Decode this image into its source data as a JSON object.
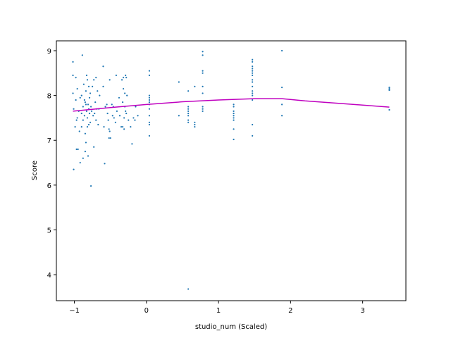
{
  "chart_data": {
    "type": "scatter",
    "title": "",
    "xlabel": "studio_num (Scaled)",
    "ylabel": "Score",
    "xlim": [
      -1.25,
      3.6
    ],
    "ylim": [
      3.42,
      9.22
    ],
    "xticks": [
      -1,
      0,
      1,
      2,
      3
    ],
    "yticks": [
      4,
      5,
      6,
      7,
      8,
      9
    ],
    "grid": false,
    "legend": "none",
    "colors": {
      "points": "#1f77b4",
      "trend": "#bf00bf"
    },
    "series": [
      {
        "type": "scatter",
        "points": [
          [
            -1.02,
            8.75
          ],
          [
            -1.02,
            8.45
          ],
          [
            -1.02,
            8.05
          ],
          [
            -1.01,
            7.7
          ],
          [
            -1.01,
            6.35
          ],
          [
            -0.99,
            7.3
          ],
          [
            -0.98,
            8.4
          ],
          [
            -0.98,
            7.9
          ],
          [
            -0.97,
            7.45
          ],
          [
            -0.97,
            6.8
          ],
          [
            -0.96,
            8.15
          ],
          [
            -0.96,
            7.5
          ],
          [
            -0.95,
            6.8
          ],
          [
            -0.94,
            7.65
          ],
          [
            -0.93,
            7.2
          ],
          [
            -0.92,
            7.95
          ],
          [
            -0.92,
            6.5
          ],
          [
            -0.9,
            8.0
          ],
          [
            -0.9,
            7.6
          ],
          [
            -0.9,
            7.3
          ],
          [
            -0.89,
            8.9
          ],
          [
            -0.88,
            7.75
          ],
          [
            -0.88,
            7.45
          ],
          [
            -0.88,
            6.6
          ],
          [
            -0.87,
            8.25
          ],
          [
            -0.86,
            7.9
          ],
          [
            -0.86,
            7.55
          ],
          [
            -0.85,
            7.85
          ],
          [
            -0.85,
            7.15
          ],
          [
            -0.85,
            6.75
          ],
          [
            -0.84,
            8.1
          ],
          [
            -0.84,
            7.8
          ],
          [
            -0.84,
            6.95
          ],
          [
            -0.83,
            8.45
          ],
          [
            -0.83,
            7.65
          ],
          [
            -0.82,
            8.35
          ],
          [
            -0.82,
            7.5
          ],
          [
            -0.82,
            7.3
          ],
          [
            -0.81,
            7.8
          ],
          [
            -0.81,
            6.65
          ],
          [
            -0.8,
            8.2
          ],
          [
            -0.8,
            7.7
          ],
          [
            -0.8,
            7.35
          ],
          [
            -0.79,
            7.95
          ],
          [
            -0.79,
            7.6
          ],
          [
            -0.78,
            8.05
          ],
          [
            -0.78,
            7.4
          ],
          [
            -0.77,
            7.75
          ],
          [
            -0.77,
            5.98
          ],
          [
            -0.76,
            7.65
          ],
          [
            -0.75,
            8.2
          ],
          [
            -0.74,
            7.55
          ],
          [
            -0.73,
            8.35
          ],
          [
            -0.73,
            6.85
          ],
          [
            -0.72,
            7.6
          ],
          [
            -0.71,
            7.85
          ],
          [
            -0.7,
            8.4
          ],
          [
            -0.7,
            7.45
          ],
          [
            -0.69,
            7.7
          ],
          [
            -0.68,
            8.1
          ],
          [
            -0.67,
            7.35
          ],
          [
            -0.66,
            7.7
          ],
          [
            -0.65,
            8.0
          ],
          [
            -0.6,
            8.65
          ],
          [
            -0.6,
            8.2
          ],
          [
            -0.59,
            7.3
          ],
          [
            -0.58,
            6.48
          ],
          [
            -0.57,
            7.75
          ],
          [
            -0.55,
            7.8
          ],
          [
            -0.54,
            7.6
          ],
          [
            -0.53,
            7.45
          ],
          [
            -0.52,
            7.25
          ],
          [
            -0.52,
            7.05
          ],
          [
            -0.51,
            8.35
          ],
          [
            -0.51,
            7.2
          ],
          [
            -0.5,
            7.05
          ],
          [
            -0.48,
            7.8
          ],
          [
            -0.47,
            7.55
          ],
          [
            -0.46,
            7.75
          ],
          [
            -0.45,
            7.5
          ],
          [
            -0.43,
            7.4
          ],
          [
            -0.42,
            8.45
          ],
          [
            -0.41,
            7.65
          ],
          [
            -0.38,
            7.95
          ],
          [
            -0.37,
            7.55
          ],
          [
            -0.35,
            7.3
          ],
          [
            -0.34,
            8.35
          ],
          [
            -0.33,
            7.85
          ],
          [
            -0.33,
            7.3
          ],
          [
            -0.32,
            8.4
          ],
          [
            -0.32,
            8.15
          ],
          [
            -0.31,
            7.5
          ],
          [
            -0.31,
            7.25
          ],
          [
            -0.3,
            8.05
          ],
          [
            -0.3,
            7.75
          ],
          [
            -0.29,
            8.45
          ],
          [
            -0.29,
            7.65
          ],
          [
            -0.28,
            8.4
          ],
          [
            -0.28,
            7.6
          ],
          [
            -0.27,
            8.0
          ],
          [
            -0.25,
            7.45
          ],
          [
            -0.22,
            7.3
          ],
          [
            -0.2,
            6.92
          ],
          [
            -0.18,
            7.5
          ],
          [
            -0.16,
            7.45
          ],
          [
            -0.15,
            7.75
          ],
          [
            -0.12,
            7.55
          ],
          [
            0.04,
            8.55
          ],
          [
            0.04,
            8.45
          ],
          [
            0.04,
            8.0
          ],
          [
            0.04,
            7.95
          ],
          [
            0.04,
            7.9
          ],
          [
            0.04,
            7.85
          ],
          [
            0.04,
            7.8
          ],
          [
            0.04,
            7.7
          ],
          [
            0.04,
            7.55
          ],
          [
            0.04,
            7.4
          ],
          [
            0.04,
            7.35
          ],
          [
            0.04,
            7.1
          ],
          [
            0.45,
            8.3
          ],
          [
            0.45,
            7.55
          ],
          [
            0.58,
            8.1
          ],
          [
            0.58,
            7.75
          ],
          [
            0.58,
            7.7
          ],
          [
            0.58,
            7.65
          ],
          [
            0.58,
            7.6
          ],
          [
            0.58,
            7.55
          ],
          [
            0.58,
            7.45
          ],
          [
            0.58,
            7.4
          ],
          [
            0.58,
            3.68
          ],
          [
            0.67,
            8.2
          ],
          [
            0.67,
            7.4
          ],
          [
            0.67,
            7.35
          ],
          [
            0.67,
            7.3
          ],
          [
            0.78,
            8.98
          ],
          [
            0.78,
            8.9
          ],
          [
            0.78,
            8.55
          ],
          [
            0.78,
            8.5
          ],
          [
            0.78,
            8.2
          ],
          [
            0.78,
            8.05
          ],
          [
            0.78,
            7.75
          ],
          [
            0.78,
            7.7
          ],
          [
            0.78,
            7.65
          ],
          [
            1.21,
            7.8
          ],
          [
            1.21,
            7.75
          ],
          [
            1.21,
            7.65
          ],
          [
            1.21,
            7.6
          ],
          [
            1.21,
            7.55
          ],
          [
            1.21,
            7.5
          ],
          [
            1.21,
            7.45
          ],
          [
            1.21,
            7.25
          ],
          [
            1.21,
            7.02
          ],
          [
            1.47,
            8.8
          ],
          [
            1.47,
            8.75
          ],
          [
            1.47,
            8.65
          ],
          [
            1.47,
            8.6
          ],
          [
            1.47,
            8.55
          ],
          [
            1.47,
            8.5
          ],
          [
            1.47,
            8.45
          ],
          [
            1.47,
            8.35
          ],
          [
            1.47,
            8.3
          ],
          [
            1.47,
            8.2
          ],
          [
            1.47,
            8.1
          ],
          [
            1.47,
            8.05
          ],
          [
            1.47,
            8.0
          ],
          [
            1.47,
            7.9
          ],
          [
            1.47,
            7.35
          ],
          [
            1.47,
            7.1
          ],
          [
            1.88,
            9.0
          ],
          [
            1.88,
            8.18
          ],
          [
            1.88,
            7.8
          ],
          [
            1.88,
            7.55
          ],
          [
            3.37,
            8.18
          ],
          [
            3.37,
            8.15
          ],
          [
            3.37,
            8.12
          ],
          [
            3.37,
            7.68
          ]
        ]
      },
      {
        "type": "line",
        "points": [
          [
            -1.02,
            7.65
          ],
          [
            -0.5,
            7.73
          ],
          [
            0.0,
            7.8
          ],
          [
            0.5,
            7.86
          ],
          [
            1.0,
            7.9
          ],
          [
            1.5,
            7.93
          ],
          [
            1.88,
            7.93
          ],
          [
            2.2,
            7.88
          ],
          [
            2.8,
            7.81
          ],
          [
            3.37,
            7.74
          ]
        ]
      }
    ]
  }
}
